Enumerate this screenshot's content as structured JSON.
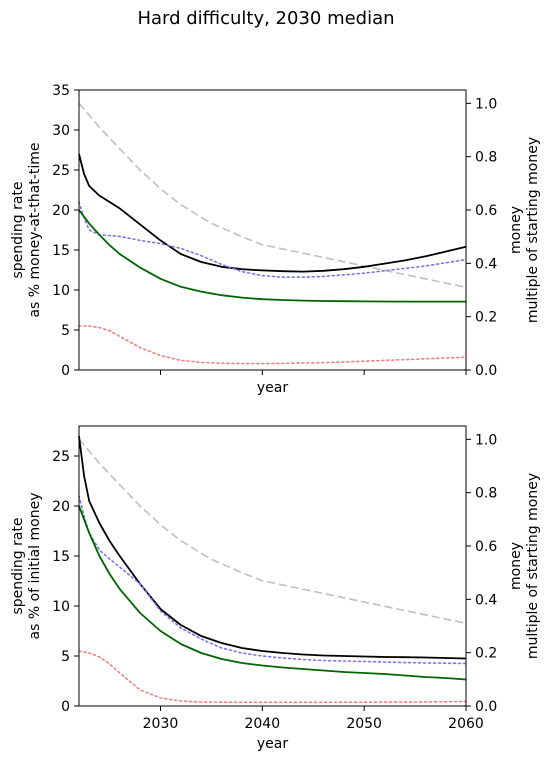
{
  "figure_title": "Hard difficulty, 2030 median",
  "chart_data": [
    {
      "type": "line",
      "xlabel": "year",
      "ylabel_left": [
        "spending rate",
        "as % money-at-that-time"
      ],
      "ylabel_right": [
        "money",
        "multiple of starting money"
      ],
      "xlim": [
        2022,
        2060
      ],
      "ylim_left": [
        0,
        35
      ],
      "ylim_right": [
        0,
        1.05
      ],
      "xticks": [
        2030,
        2040,
        2050,
        2060
      ],
      "show_xtick_labels": false,
      "yticks_left": [
        0,
        5,
        10,
        15,
        20,
        25,
        30,
        35
      ],
      "yticks_right": [
        0.0,
        0.2,
        0.4,
        0.6,
        0.8,
        1.0
      ],
      "grid": false,
      "series": [
        {
          "axis": "right",
          "color": "#bfbfbf",
          "style": "dashed",
          "x": [
            2022,
            2024,
            2026,
            2028,
            2030,
            2032,
            2035,
            2038,
            2040,
            2045,
            2050,
            2055,
            2060
          ],
          "y": [
            1.0,
            0.91,
            0.83,
            0.75,
            0.68,
            0.62,
            0.55,
            0.5,
            0.47,
            0.43,
            0.39,
            0.35,
            0.31
          ]
        },
        {
          "axis": "left",
          "color": "#000000",
          "style": "solid",
          "x": [
            2022,
            2022.5,
            2023,
            2024,
            2025,
            2026,
            2028,
            2030,
            2032,
            2034,
            2036,
            2038,
            2040,
            2042,
            2044,
            2046,
            2048,
            2050,
            2052,
            2054,
            2056,
            2058,
            2060
          ],
          "y": [
            27,
            24.5,
            23,
            21.8,
            21,
            20.2,
            18.2,
            16.2,
            14.5,
            13.5,
            12.9,
            12.6,
            12.45,
            12.35,
            12.3,
            12.4,
            12.6,
            12.9,
            13.3,
            13.7,
            14.2,
            14.8,
            15.4
          ]
        },
        {
          "axis": "left",
          "color": "#7878e6",
          "style": "dotted",
          "x": [
            2022,
            2022.5,
            2023,
            2024,
            2025,
            2026,
            2028,
            2030,
            2032,
            2034,
            2036,
            2038,
            2040,
            2042,
            2044,
            2046,
            2048,
            2050,
            2052,
            2054,
            2056,
            2058,
            2060
          ],
          "y": [
            21,
            19,
            17.5,
            16.9,
            16.8,
            16.7,
            16.2,
            15.8,
            15.2,
            14.3,
            13.2,
            12.3,
            11.8,
            11.6,
            11.6,
            11.7,
            11.9,
            12.1,
            12.4,
            12.7,
            13,
            13.4,
            13.8
          ]
        },
        {
          "axis": "left",
          "color": "#006400",
          "style": "solid",
          "x": [
            2022,
            2023,
            2024,
            2025,
            2026,
            2028,
            2030,
            2032,
            2034,
            2036,
            2038,
            2040,
            2042,
            2044,
            2046,
            2048,
            2050,
            2055,
            2060
          ],
          "y": [
            20,
            18.3,
            16.9,
            15.6,
            14.5,
            12.8,
            11.4,
            10.4,
            9.8,
            9.35,
            9.05,
            8.85,
            8.75,
            8.67,
            8.62,
            8.6,
            8.58,
            8.55,
            8.55
          ]
        },
        {
          "axis": "left",
          "color": "#f08080",
          "style": "dotted",
          "x": [
            2022,
            2023,
            2024,
            2025,
            2026,
            2028,
            2030,
            2032,
            2034,
            2036,
            2038,
            2040,
            2042,
            2044,
            2046,
            2048,
            2050,
            2052,
            2054,
            2056,
            2058,
            2060
          ],
          "y": [
            5.5,
            5.5,
            5.3,
            4.9,
            4.2,
            2.8,
            1.8,
            1.2,
            0.95,
            0.85,
            0.8,
            0.8,
            0.82,
            0.87,
            0.93,
            1,
            1.1,
            1.2,
            1.3,
            1.4,
            1.5,
            1.6
          ]
        }
      ]
    },
    {
      "type": "line",
      "xlabel": "year",
      "ylabel_left": [
        "spending rate",
        "as % of initial money"
      ],
      "ylabel_right": [
        "money",
        "multiple of starting money"
      ],
      "xlim": [
        2022,
        2060
      ],
      "ylim_left": [
        0,
        28
      ],
      "ylim_right": [
        0,
        1.05
      ],
      "xticks": [
        2030,
        2040,
        2050,
        2060
      ],
      "xtick_labels": [
        "2030",
        "2040",
        "2050",
        "2060"
      ],
      "show_xtick_labels": true,
      "yticks_left": [
        0,
        5,
        10,
        15,
        20,
        25
      ],
      "yticks_right": [
        0.0,
        0.2,
        0.4,
        0.6,
        0.8,
        1.0
      ],
      "grid": false,
      "series": [
        {
          "axis": "right",
          "color": "#bfbfbf",
          "style": "dashed",
          "x": [
            2022,
            2024,
            2026,
            2028,
            2030,
            2032,
            2035,
            2038,
            2040,
            2045,
            2050,
            2055,
            2060
          ],
          "y": [
            1.0,
            0.91,
            0.83,
            0.75,
            0.68,
            0.62,
            0.55,
            0.5,
            0.47,
            0.43,
            0.39,
            0.35,
            0.31
          ]
        },
        {
          "axis": "left",
          "color": "#000000",
          "style": "solid",
          "x": [
            2022,
            2022.5,
            2023,
            2024,
            2025,
            2026,
            2028,
            2030,
            2032,
            2034,
            2036,
            2038,
            2040,
            2042,
            2044,
            2046,
            2048,
            2050,
            2052,
            2054,
            2056,
            2058,
            2060
          ],
          "y": [
            27,
            23,
            20.5,
            18.3,
            16.5,
            15,
            12.2,
            9.7,
            8.1,
            7,
            6.3,
            5.8,
            5.5,
            5.3,
            5.15,
            5.05,
            5,
            4.95,
            4.9,
            4.88,
            4.85,
            4.8,
            4.75
          ]
        },
        {
          "axis": "left",
          "color": "#7878e6",
          "style": "dotted",
          "x": [
            2022,
            2022.5,
            2023,
            2024,
            2025,
            2026,
            2028,
            2030,
            2032,
            2034,
            2036,
            2038,
            2040,
            2042,
            2044,
            2046,
            2048,
            2050,
            2052,
            2054,
            2056,
            2058,
            2060
          ],
          "y": [
            21,
            19,
            17.3,
            15.6,
            14.7,
            13.9,
            12.2,
            9.5,
            7.8,
            6.7,
            5.8,
            5.3,
            5,
            4.8,
            4.65,
            4.55,
            4.5,
            4.45,
            4.4,
            4.35,
            4.3,
            4.28,
            4.25
          ]
        },
        {
          "axis": "left",
          "color": "#006400",
          "style": "solid",
          "x": [
            2022,
            2023,
            2024,
            2025,
            2026,
            2028,
            2030,
            2032,
            2034,
            2036,
            2038,
            2040,
            2042,
            2044,
            2046,
            2048,
            2050,
            2052,
            2054,
            2056,
            2058,
            2060
          ],
          "y": [
            20,
            17.3,
            15,
            13.2,
            11.7,
            9.3,
            7.5,
            6.2,
            5.3,
            4.7,
            4.3,
            4.05,
            3.85,
            3.7,
            3.55,
            3.4,
            3.3,
            3.2,
            3.05,
            2.9,
            2.8,
            2.65
          ]
        },
        {
          "axis": "left",
          "color": "#f08080",
          "style": "dotted",
          "x": [
            2022,
            2023,
            2024,
            2025,
            2026,
            2028,
            2030,
            2032,
            2034,
            2036,
            2038,
            2040,
            2045,
            2050,
            2055,
            2060
          ],
          "y": [
            5.5,
            5.3,
            4.9,
            4.2,
            3.3,
            1.6,
            0.8,
            0.5,
            0.4,
            0.38,
            0.37,
            0.37,
            0.37,
            0.38,
            0.4,
            0.45
          ]
        }
      ]
    }
  ]
}
